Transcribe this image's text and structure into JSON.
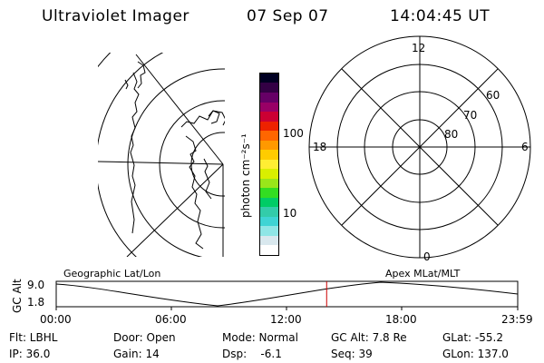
{
  "header": {
    "instrument": "Ultraviolet Imager",
    "date": "07 Sep 07",
    "time": "14:04:45 UT"
  },
  "colorbar": {
    "unit_label": "photon cm⁻²s⁻¹",
    "ticks": [
      "100",
      "10"
    ],
    "colors": [
      "#ffffff",
      "#d9e8ee",
      "#8fe6e6",
      "#3fd4d4",
      "#33ccaa",
      "#00cc66",
      "#33dd22",
      "#99e61a",
      "#d9ef00",
      "#ffee33",
      "#ffcc00",
      "#ff9900",
      "#ff6600",
      "#ee2200",
      "#cc0033",
      "#990066",
      "#660066",
      "#330044",
      "#000022"
    ]
  },
  "right_plot": {
    "mlt_labels": {
      "top": "12",
      "left": "18",
      "right": "6",
      "bottom": "0"
    },
    "lat_labels": [
      "60",
      "70",
      "80"
    ]
  },
  "map_labels": {
    "left": "Geographic Lat/Lon",
    "right": "Apex MLat/MLT"
  },
  "altitude_plot": {
    "ylabel": "GC Alt",
    "y_ticks": [
      "9.0",
      "1.8"
    ],
    "x_ticks": [
      "00:00",
      "06:00",
      "12:00",
      "18:00",
      "23:59"
    ],
    "current_time_fraction": 0.586
  },
  "status": {
    "filter": "Flt: LBHL",
    "ip": "IP: 36.0",
    "door": "Door: Open",
    "gain": "Gain: 14",
    "mode": "Mode: Normal",
    "dsp": "Dsp:    -6.1",
    "gc_alt": "GC Alt: 7.8 Re",
    "seq": "Seq: 39",
    "glat": "GLat: -55.2",
    "glon": "GLon: 137.0"
  }
}
